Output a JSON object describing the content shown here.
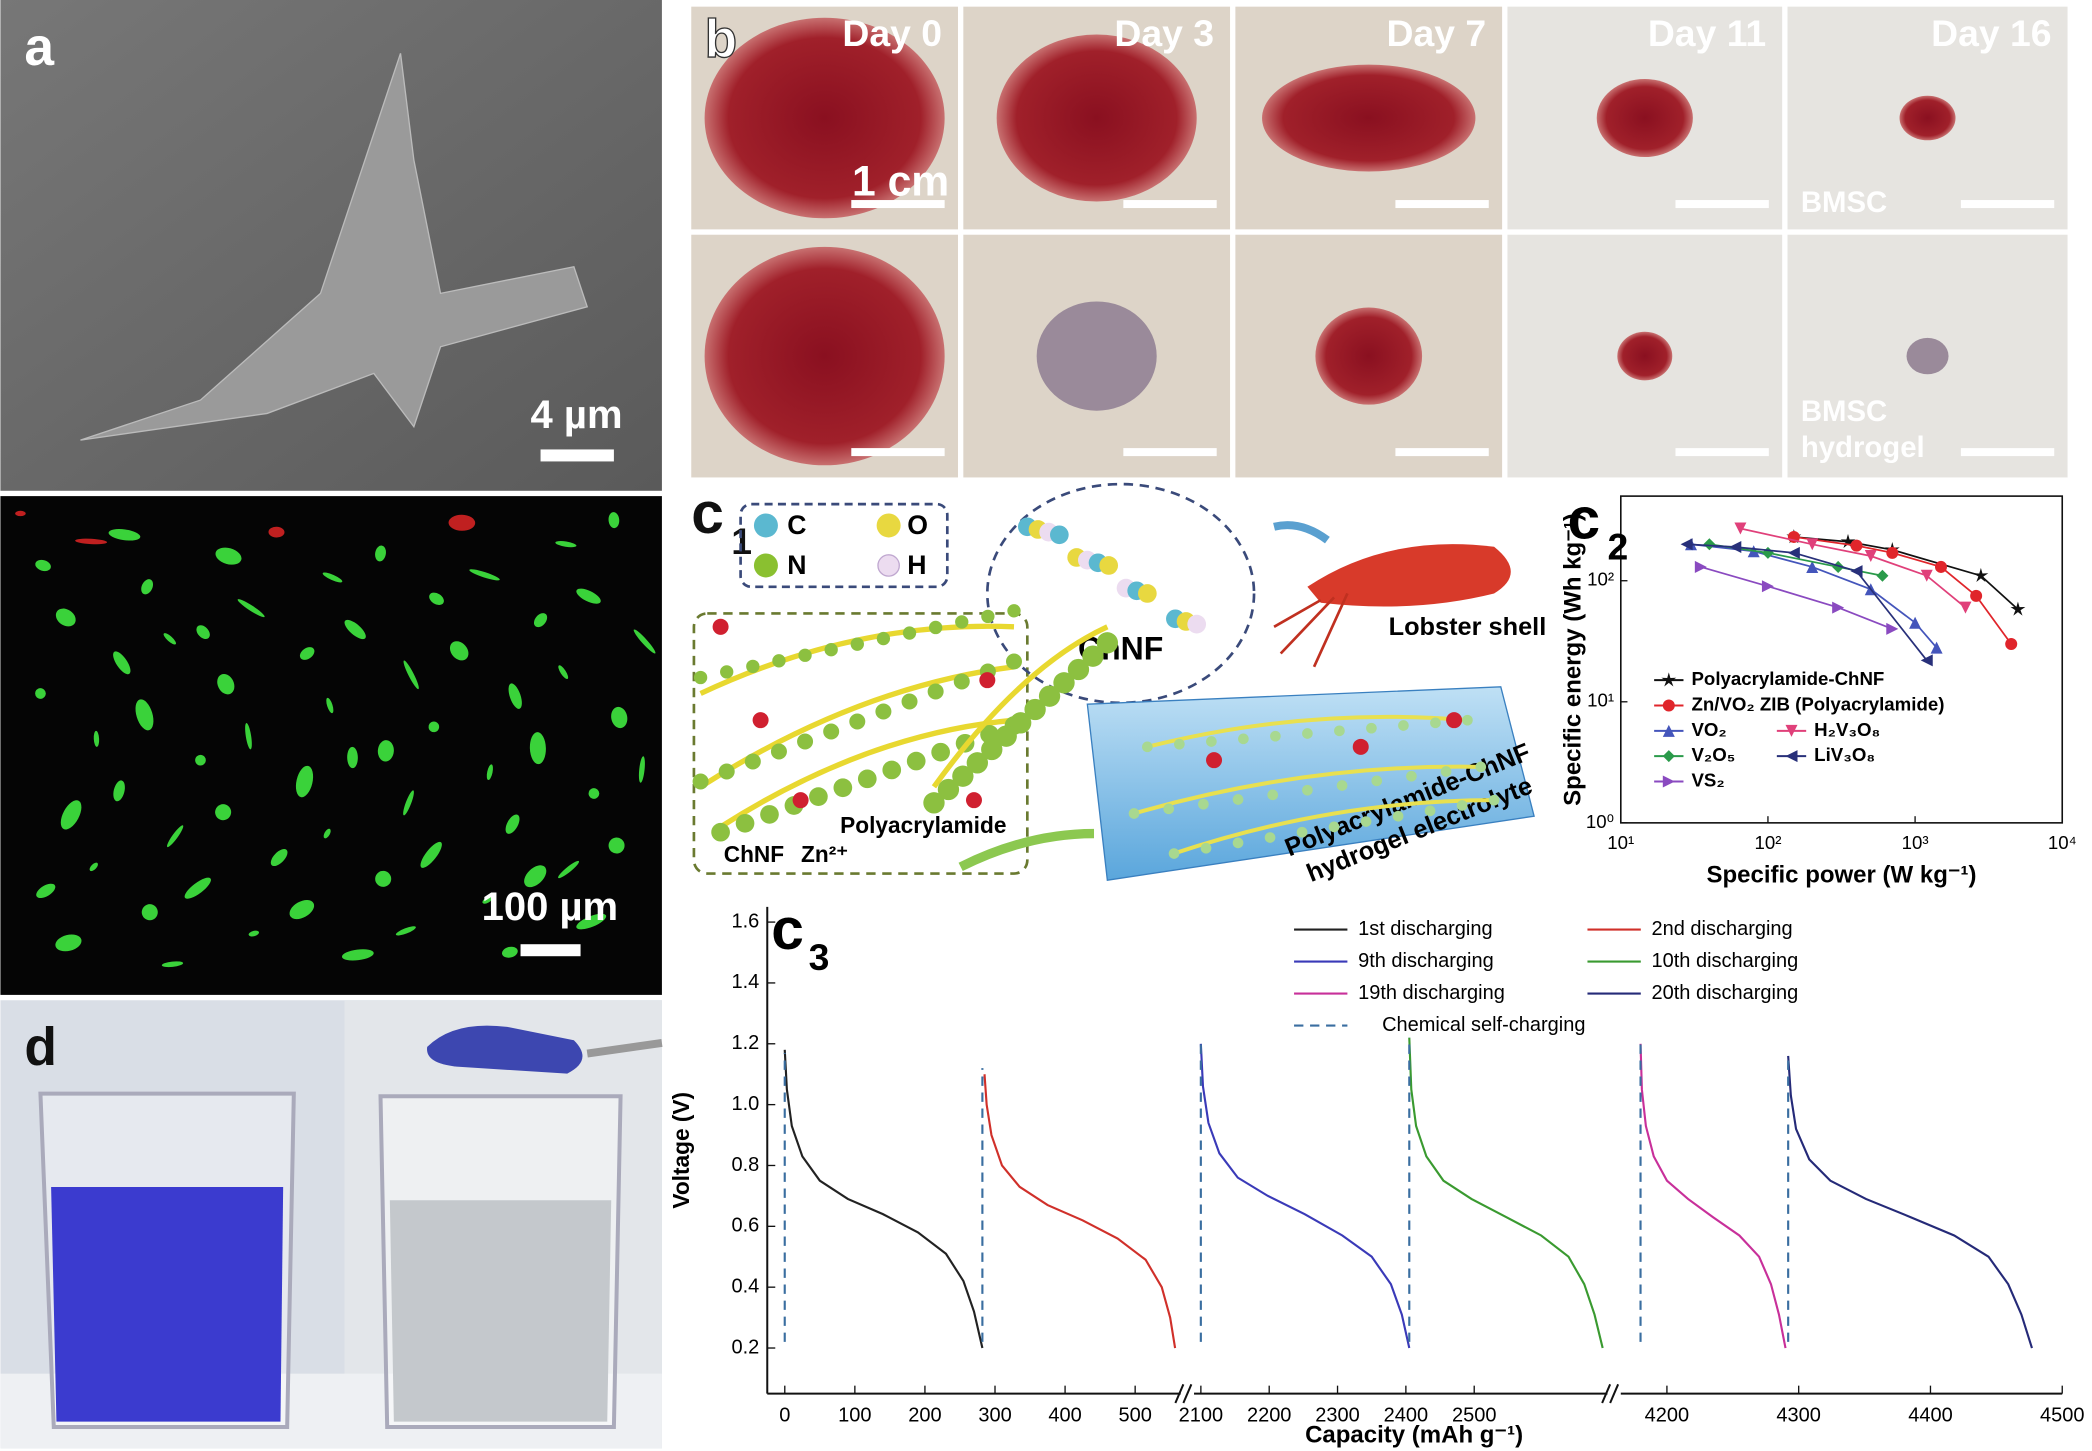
{
  "panels": {
    "a": {
      "label": "a",
      "scale_top": "4 µm",
      "scale_bottom": "100 µm"
    },
    "b": {
      "label": "b",
      "days": [
        "Day 0",
        "Day 3",
        "Day 7",
        "Day 11",
        "Day 16"
      ],
      "scale": "1 cm",
      "groups": [
        [
          "BMSC"
        ],
        [
          "BMSC",
          "hydrogel"
        ]
      ]
    },
    "c1": {
      "label": "c",
      "sub": "1",
      "atoms": [
        "C",
        "O",
        "N",
        "H"
      ],
      "molecule": "ChNF",
      "source": "Lobster shell",
      "parts": [
        "ChNF",
        "Zn²⁺",
        "Polyacrylamide"
      ],
      "electrolyte": [
        "Polyacrylamide-ChNF",
        "hydrogel electrolyte"
      ]
    },
    "d": {
      "label": "d"
    }
  },
  "chart_data": [
    {
      "type": "line",
      "label": "c",
      "sub": "2",
      "xlabel": "Specific power (W kg⁻¹)",
      "ylabel": "Specific energy (Wh kg⁻¹)",
      "xscale": "log",
      "yscale": "log",
      "xlim": [
        10,
        10000
      ],
      "ylim": [
        1,
        500
      ],
      "xticks": [
        {
          "value": 10,
          "label": "10¹"
        },
        {
          "value": 100,
          "label": "10²"
        },
        {
          "value": 1000,
          "label": "10³"
        },
        {
          "value": 10000,
          "label": "10⁴"
        }
      ],
      "yticks": [
        {
          "value": 1,
          "label": "10⁰"
        },
        {
          "value": 10,
          "label": "10¹"
        },
        {
          "value": 100,
          "label": "10²"
        }
      ],
      "series": [
        {
          "name": "Polyacrylamide-ChNF",
          "color": "#111111",
          "marker": "star",
          "x": [
            150,
            350,
            700,
            2800,
            5000
          ],
          "values": [
            230,
            210,
            180,
            110,
            58
          ]
        },
        {
          "name": "Zn/VO₂ ZIB (Polyacrylamide)",
          "color": "#e0252b",
          "marker": "circle",
          "x": [
            150,
            400,
            700,
            1500,
            2600,
            4500
          ],
          "values": [
            230,
            195,
            170,
            130,
            75,
            30
          ]
        },
        {
          "name": "VO₂",
          "color": "#4455bb",
          "marker": "triangle-up",
          "x": [
            30,
            80,
            200,
            500,
            1000,
            1400
          ],
          "values": [
            200,
            175,
            130,
            85,
            45,
            28
          ]
        },
        {
          "name": "H₂V₃O₈",
          "color": "#e0407a",
          "marker": "triangle-down",
          "x": [
            65,
            200,
            500,
            1200,
            2200
          ],
          "values": [
            270,
            200,
            160,
            110,
            60
          ]
        },
        {
          "name": "V₂O₅",
          "color": "#2a9a4a",
          "marker": "diamond",
          "x": [
            40,
            100,
            300,
            600
          ],
          "values": [
            200,
            170,
            130,
            110
          ]
        },
        {
          "name": "LiV₃O₈",
          "color": "#28307a",
          "marker": "triangle-left",
          "x": [
            28,
            60,
            150,
            400,
            1200
          ],
          "values": [
            200,
            190,
            170,
            120,
            22
          ]
        },
        {
          "name": "VS₂",
          "color": "#8a4ac0",
          "marker": "triangle-right",
          "x": [
            35,
            100,
            300,
            700
          ],
          "values": [
            130,
            90,
            60,
            40
          ]
        }
      ]
    },
    {
      "type": "line",
      "label": "c",
      "sub": "3",
      "xlabel": "Capacity (mAh g⁻¹)",
      "ylabel": "Voltage (V)",
      "ylim": [
        0.05,
        1.65
      ],
      "yticks": [
        0.2,
        0.4,
        0.6,
        0.8,
        {
          "value": 1,
          "label": "1.0"
        },
        1.2,
        1.4,
        1.6
      ],
      "x_segments": [
        {
          "xlim": [
            -25,
            565
          ],
          "xticks": [
            0,
            100,
            200,
            300,
            400,
            500
          ]
        },
        {
          "xlim": [
            2090,
            2695
          ],
          "xticks": [
            2100,
            2200,
            2300,
            2400,
            2500
          ]
        },
        {
          "xlim": [
            4165,
            4500
          ],
          "xticks": [
            4200,
            4300,
            4400,
            4500
          ]
        }
      ],
      "series": [
        {
          "name": "1st discharging",
          "color": "#222222",
          "x": [
            0,
            3,
            10,
            25,
            50,
            90,
            140,
            190,
            230,
            255,
            270,
            282
          ],
          "values": [
            1.18,
            1.05,
            0.93,
            0.83,
            0.75,
            0.69,
            0.64,
            0.58,
            0.51,
            0.42,
            0.32,
            0.2
          ]
        },
        {
          "name": "2nd discharging",
          "color": "#d0302a",
          "x": [
            285,
            288,
            295,
            310,
            335,
            375,
            425,
            475,
            515,
            538,
            550,
            557
          ],
          "values": [
            1.1,
            1.0,
            0.9,
            0.8,
            0.73,
            0.67,
            0.62,
            0.56,
            0.49,
            0.4,
            0.3,
            0.2
          ]
        },
        {
          "name": "9th discharging",
          "color": "#3a3ab8",
          "x": [
            2100,
            2103,
            2111,
            2127,
            2154,
            2198,
            2252,
            2307,
            2350,
            2378,
            2394,
            2405
          ],
          "values": [
            1.2,
            1.06,
            0.94,
            0.84,
            0.76,
            0.7,
            0.64,
            0.57,
            0.5,
            0.41,
            0.31,
            0.2
          ]
        },
        {
          "name": "10th discharging",
          "color": "#3a9a30",
          "x": [
            2405,
            2408,
            2415,
            2430,
            2455,
            2496,
            2547,
            2598,
            2638,
            2661,
            2676,
            2688
          ],
          "values": [
            1.22,
            1.05,
            0.93,
            0.83,
            0.75,
            0.69,
            0.63,
            0.57,
            0.5,
            0.41,
            0.31,
            0.2
          ]
        },
        {
          "name": "19th discharging",
          "color": "#c8309a",
          "x": [
            4180,
            4181,
            4184,
            4190,
            4200,
            4216,
            4235,
            4255,
            4270,
            4279,
            4285,
            4290
          ],
          "values": [
            1.2,
            1.05,
            0.93,
            0.83,
            0.75,
            0.69,
            0.63,
            0.57,
            0.5,
            0.41,
            0.31,
            0.2
          ]
        },
        {
          "name": "20th discharging",
          "color": "#252a78",
          "x": [
            4292,
            4294,
            4298,
            4308,
            4324,
            4351,
            4385,
            4418,
            4444,
            4459,
            4469,
            4477
          ],
          "values": [
            1.16,
            1.03,
            0.92,
            0.82,
            0.75,
            0.69,
            0.63,
            0.57,
            0.5,
            0.41,
            0.31,
            0.2
          ]
        },
        {
          "name": "Chemical self-charging",
          "color": "#3a6ea0",
          "dash": true,
          "x": [
            0,
            0,
            null,
            282,
            282,
            null,
            2100,
            2100,
            null,
            2405,
            2405,
            null,
            4180,
            4180,
            null,
            4292,
            4292
          ],
          "values": [
            0.22,
            1.17,
            null,
            0.22,
            1.12,
            null,
            0.22,
            1.2,
            null,
            0.22,
            1.22,
            null,
            0.22,
            1.2,
            null,
            0.22,
            1.15
          ]
        }
      ]
    }
  ]
}
